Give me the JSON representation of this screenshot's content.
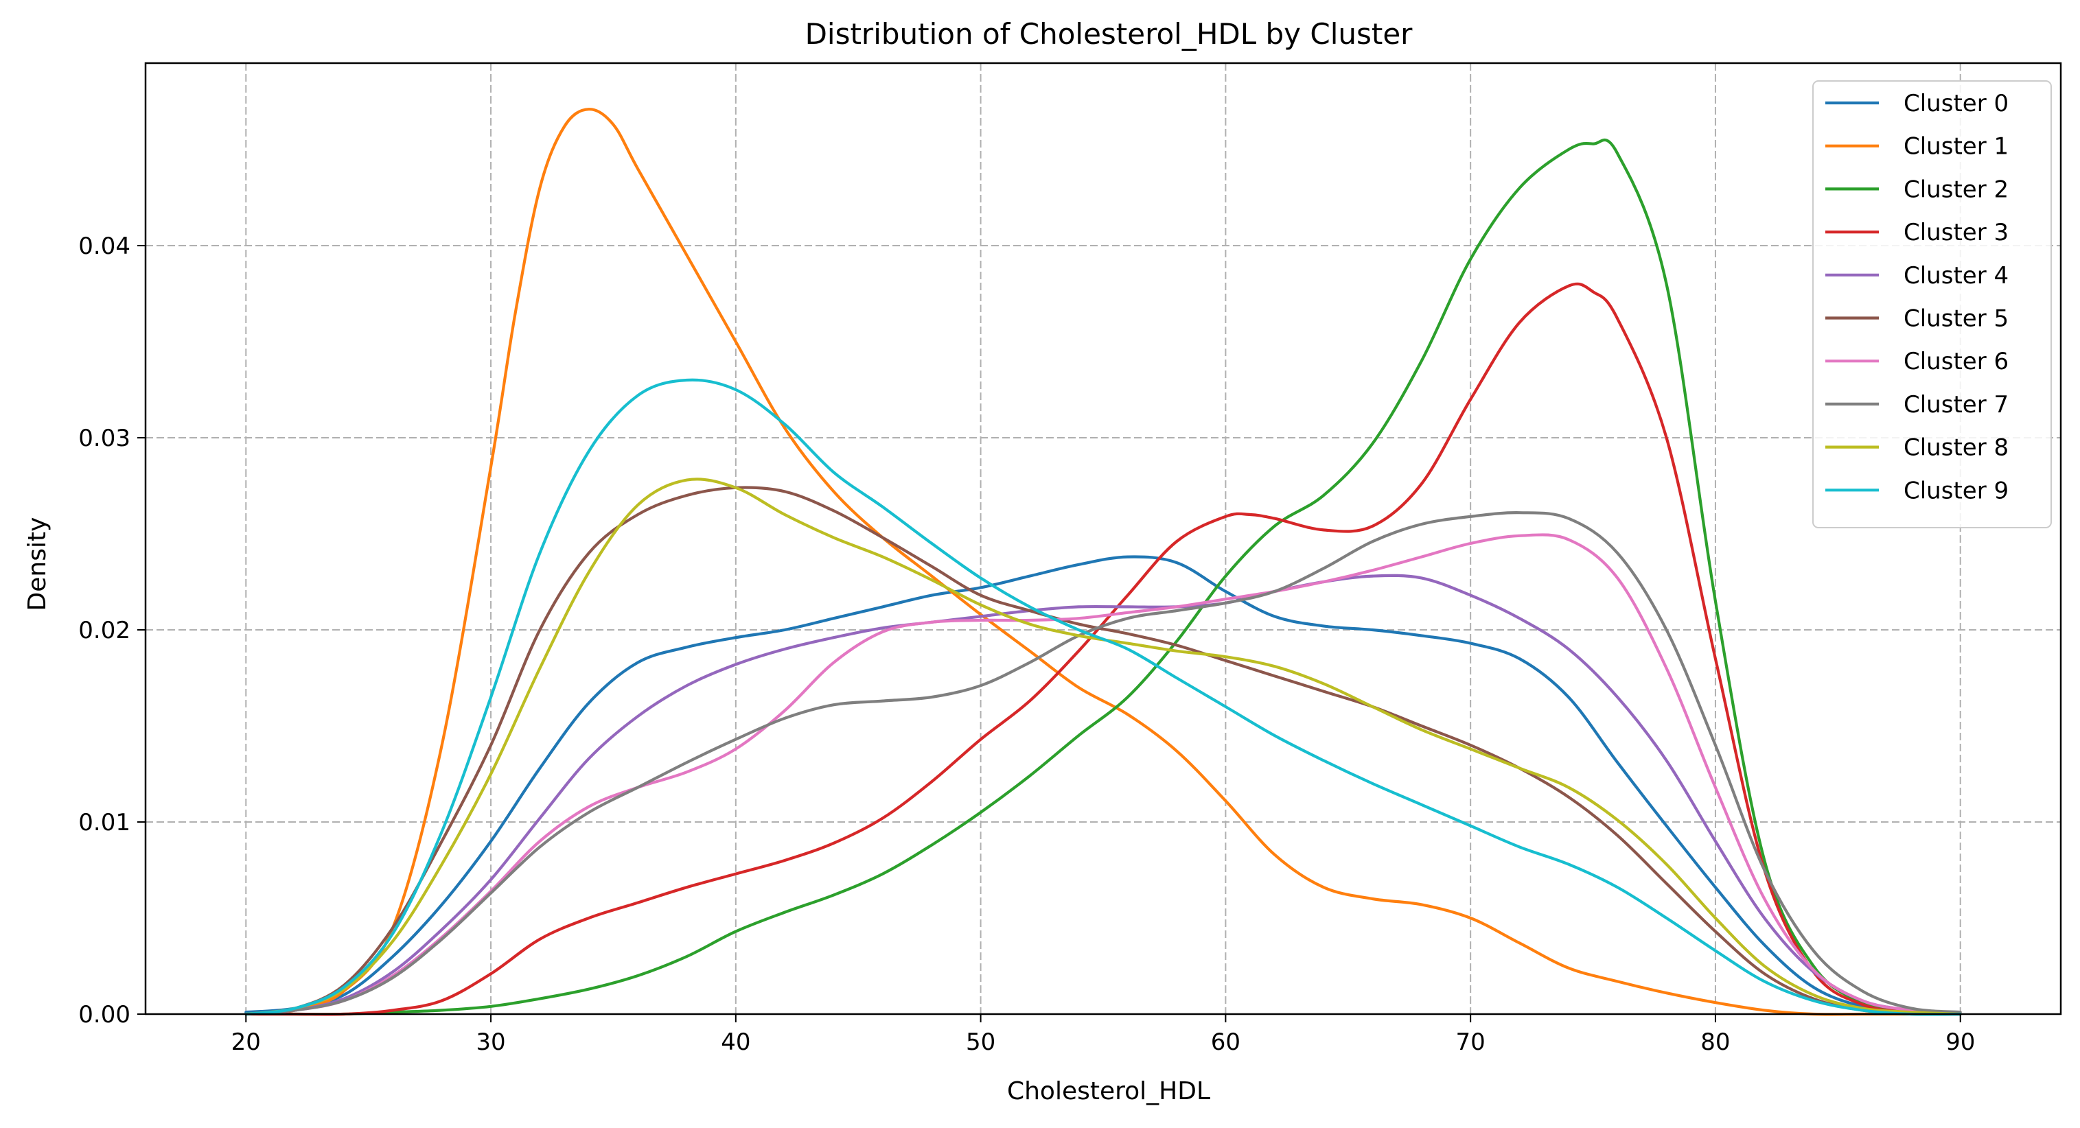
{
  "chart_data": {
    "type": "line",
    "title": "Distribution of Cholesterol_HDL by Cluster",
    "xlabel": "Cholesterol_HDL",
    "ylabel": "Density",
    "xlim": [
      15.9,
      94.1
    ],
    "ylim": [
      0,
      0.0495
    ],
    "xticks": [
      20,
      30,
      40,
      50,
      60,
      70,
      80,
      90
    ],
    "xtick_labels": [
      "20",
      "30",
      "40",
      "50",
      "60",
      "70",
      "80",
      "90"
    ],
    "yticks": [
      0,
      0.01,
      0.02,
      0.03,
      0.04
    ],
    "ytick_labels": [
      "0.00",
      "0.01",
      "0.02",
      "0.03",
      "0.04"
    ],
    "grid": true,
    "legend_position": "top-right",
    "series": [
      {
        "name": "Cluster 0",
        "color": "#1f77b4",
        "x": [
          20,
          22,
          24,
          26,
          28,
          30,
          32,
          34,
          36,
          38,
          40,
          42,
          44,
          46,
          48,
          50,
          52,
          54,
          56,
          58,
          60,
          62,
          64,
          66,
          68,
          70,
          72,
          74,
          76,
          78,
          80,
          82,
          84,
          86,
          88,
          90
        ],
        "y": [
          0.0001,
          0.0003,
          0.001,
          0.003,
          0.0057,
          0.009,
          0.0128,
          0.0162,
          0.0183,
          0.0191,
          0.0196,
          0.02,
          0.0206,
          0.0212,
          0.0218,
          0.0222,
          0.0228,
          0.0234,
          0.0238,
          0.0235,
          0.022,
          0.0207,
          0.0202,
          0.02,
          0.0197,
          0.0193,
          0.0185,
          0.0165,
          0.0131,
          0.0098,
          0.0066,
          0.0036,
          0.0014,
          0.0004,
          0.0001,
          0.0
        ]
      },
      {
        "name": "Cluster 1",
        "color": "#ff7f0e",
        "x": [
          20,
          22,
          24,
          26,
          28,
          30,
          31,
          32,
          33,
          34,
          35,
          36,
          38,
          40,
          42,
          44,
          46,
          48,
          50,
          52,
          54,
          56,
          58,
          60,
          62,
          64,
          66,
          68,
          70,
          72,
          74,
          76,
          78,
          80,
          82,
          84,
          86,
          88,
          90
        ],
        "y": [
          0.0,
          0.0002,
          0.0012,
          0.0045,
          0.014,
          0.0285,
          0.0365,
          0.043,
          0.0462,
          0.0471,
          0.0463,
          0.044,
          0.0395,
          0.035,
          0.0305,
          0.0272,
          0.0248,
          0.0228,
          0.0208,
          0.0189,
          0.017,
          0.0156,
          0.0137,
          0.0111,
          0.0083,
          0.0066,
          0.006,
          0.0057,
          0.005,
          0.0037,
          0.0024,
          0.0017,
          0.0011,
          0.0006,
          0.0002,
          0.0,
          0.0,
          0.0,
          0.0
        ]
      },
      {
        "name": "Cluster 2",
        "color": "#2ca02c",
        "x": [
          20,
          22,
          24,
          26,
          28,
          30,
          32,
          34,
          36,
          38,
          40,
          42,
          44,
          46,
          48,
          50,
          52,
          54,
          56,
          58,
          60,
          62,
          64,
          66,
          68,
          70,
          72,
          74,
          75,
          76,
          78,
          80,
          82,
          84,
          86,
          88,
          90
        ],
        "y": [
          0.0,
          0.0,
          0.0,
          0.0001,
          0.0002,
          0.0004,
          0.0008,
          0.0013,
          0.002,
          0.003,
          0.0043,
          0.0053,
          0.0062,
          0.0073,
          0.0088,
          0.0105,
          0.0124,
          0.0145,
          0.0165,
          0.0194,
          0.0228,
          0.0254,
          0.027,
          0.0297,
          0.034,
          0.0393,
          0.043,
          0.045,
          0.0453,
          0.0448,
          0.038,
          0.0215,
          0.008,
          0.0025,
          0.0006,
          0.0001,
          0.0
        ]
      },
      {
        "name": "Cluster 3",
        "color": "#d62728",
        "x": [
          20,
          22,
          24,
          26,
          28,
          30,
          32,
          34,
          36,
          38,
          40,
          42,
          44,
          46,
          48,
          50,
          52,
          54,
          56,
          58,
          60,
          61,
          62,
          64,
          66,
          68,
          70,
          72,
          74,
          75,
          76,
          78,
          80,
          82,
          84,
          86,
          88,
          90
        ],
        "y": [
          0.0,
          0.0,
          0.0,
          0.0002,
          0.0007,
          0.0021,
          0.0039,
          0.005,
          0.0058,
          0.0066,
          0.0073,
          0.008,
          0.0089,
          0.0102,
          0.0121,
          0.0143,
          0.0163,
          0.0189,
          0.0218,
          0.0246,
          0.0259,
          0.026,
          0.0258,
          0.0252,
          0.0254,
          0.0276,
          0.032,
          0.036,
          0.0379,
          0.0376,
          0.0362,
          0.03,
          0.0185,
          0.0075,
          0.0022,
          0.0005,
          0.0001,
          0.0
        ]
      },
      {
        "name": "Cluster 4",
        "color": "#9467bd",
        "x": [
          20,
          22,
          24,
          26,
          28,
          30,
          32,
          34,
          36,
          38,
          40,
          42,
          44,
          46,
          48,
          50,
          52,
          54,
          56,
          58,
          60,
          62,
          64,
          66,
          68,
          70,
          72,
          74,
          76,
          78,
          80,
          82,
          84,
          86,
          88,
          90
        ],
        "y": [
          0.0,
          0.0002,
          0.0008,
          0.0022,
          0.0044,
          0.007,
          0.0102,
          0.0133,
          0.0155,
          0.0171,
          0.0182,
          0.019,
          0.0196,
          0.0201,
          0.0204,
          0.0207,
          0.021,
          0.0212,
          0.0212,
          0.0212,
          0.0214,
          0.022,
          0.0225,
          0.0228,
          0.0227,
          0.0218,
          0.0206,
          0.019,
          0.0165,
          0.0132,
          0.009,
          0.005,
          0.0022,
          0.0007,
          0.0002,
          0.0
        ]
      },
      {
        "name": "Cluster 5",
        "color": "#8c564b",
        "x": [
          20,
          22,
          24,
          26,
          28,
          30,
          32,
          34,
          36,
          38,
          40,
          42,
          44,
          46,
          48,
          50,
          52,
          54,
          56,
          58,
          60,
          62,
          64,
          66,
          68,
          70,
          72,
          74,
          76,
          78,
          80,
          82,
          84,
          86,
          88,
          90
        ],
        "y": [
          0.0,
          0.0003,
          0.0015,
          0.0045,
          0.009,
          0.014,
          0.02,
          0.024,
          0.026,
          0.027,
          0.0274,
          0.0272,
          0.0262,
          0.0248,
          0.0233,
          0.0218,
          0.021,
          0.0203,
          0.0198,
          0.0192,
          0.0184,
          0.0176,
          0.0168,
          0.016,
          0.015,
          0.014,
          0.0128,
          0.0113,
          0.0093,
          0.0068,
          0.0043,
          0.0021,
          0.0008,
          0.0002,
          0.0,
          0.0
        ]
      },
      {
        "name": "Cluster 6",
        "color": "#e377c2",
        "x": [
          20,
          22,
          24,
          26,
          28,
          30,
          32,
          34,
          36,
          38,
          40,
          42,
          44,
          46,
          48,
          50,
          52,
          54,
          56,
          58,
          60,
          62,
          64,
          66,
          68,
          70,
          72,
          74,
          76,
          78,
          80,
          82,
          84,
          86,
          88,
          90
        ],
        "y": [
          0.0,
          0.0002,
          0.0007,
          0.002,
          0.004,
          0.0064,
          0.009,
          0.0108,
          0.0118,
          0.0126,
          0.0138,
          0.0158,
          0.0183,
          0.0199,
          0.0204,
          0.0205,
          0.0205,
          0.0206,
          0.0209,
          0.0212,
          0.0216,
          0.022,
          0.0225,
          0.0231,
          0.0238,
          0.0245,
          0.0249,
          0.0247,
          0.0227,
          0.018,
          0.0118,
          0.006,
          0.0023,
          0.0007,
          0.0002,
          0.0
        ]
      },
      {
        "name": "Cluster 7",
        "color": "#7f7f7f",
        "x": [
          20,
          22,
          24,
          26,
          28,
          30,
          32,
          34,
          36,
          38,
          40,
          42,
          44,
          46,
          48,
          50,
          52,
          54,
          56,
          58,
          60,
          62,
          64,
          66,
          68,
          70,
          72,
          74,
          76,
          78,
          80,
          82,
          84,
          86,
          88,
          90
        ],
        "y": [
          0.0,
          0.0002,
          0.0007,
          0.0019,
          0.0039,
          0.0063,
          0.0087,
          0.0105,
          0.0118,
          0.0131,
          0.0143,
          0.0154,
          0.0161,
          0.0163,
          0.0165,
          0.0171,
          0.0183,
          0.0197,
          0.0206,
          0.021,
          0.0214,
          0.022,
          0.0232,
          0.0246,
          0.0255,
          0.0259,
          0.0261,
          0.0258,
          0.024,
          0.02,
          0.014,
          0.0075,
          0.0033,
          0.0012,
          0.0003,
          0.0001
        ]
      },
      {
        "name": "Cluster 8",
        "color": "#bcbd22",
        "x": [
          20,
          22,
          24,
          26,
          28,
          30,
          32,
          34,
          36,
          38,
          40,
          42,
          44,
          46,
          48,
          50,
          52,
          54,
          56,
          58,
          60,
          62,
          64,
          66,
          68,
          70,
          72,
          74,
          76,
          78,
          80,
          82,
          84,
          86,
          88,
          90
        ],
        "y": [
          0.0,
          0.0003,
          0.0013,
          0.0038,
          0.0078,
          0.0125,
          0.018,
          0.023,
          0.0265,
          0.0278,
          0.0274,
          0.026,
          0.0248,
          0.0238,
          0.0226,
          0.0213,
          0.0203,
          0.0197,
          0.0193,
          0.0189,
          0.0186,
          0.0181,
          0.0172,
          0.016,
          0.0148,
          0.0138,
          0.0128,
          0.0118,
          0.0101,
          0.0078,
          0.005,
          0.0025,
          0.001,
          0.0003,
          0.0001,
          0.0
        ]
      },
      {
        "name": "Cluster 9",
        "color": "#17becf",
        "x": [
          20,
          22,
          24,
          26,
          28,
          30,
          32,
          34,
          36,
          38,
          40,
          42,
          44,
          46,
          48,
          50,
          52,
          54,
          56,
          58,
          60,
          62,
          64,
          66,
          68,
          70,
          72,
          74,
          76,
          78,
          80,
          82,
          84,
          86,
          88,
          90
        ],
        "y": [
          0.0,
          0.0003,
          0.0014,
          0.0042,
          0.0095,
          0.0165,
          0.024,
          0.0293,
          0.0322,
          0.033,
          0.0325,
          0.0307,
          0.0282,
          0.0264,
          0.0245,
          0.0227,
          0.0212,
          0.02,
          0.019,
          0.0175,
          0.016,
          0.0145,
          0.0132,
          0.012,
          0.0109,
          0.0098,
          0.0087,
          0.0078,
          0.0066,
          0.005,
          0.0033,
          0.0017,
          0.0007,
          0.0002,
          0.0,
          0.0
        ]
      }
    ]
  }
}
